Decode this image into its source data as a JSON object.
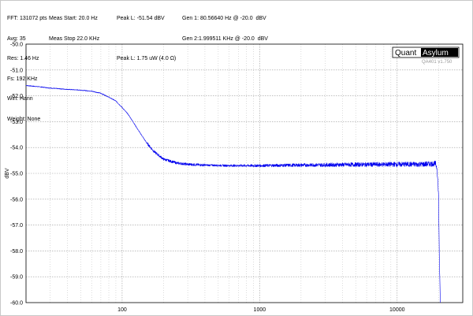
{
  "header": {
    "col1": [
      "FFT: 131072 pts",
      "Avg: 35",
      "Res: 1.46 Hz",
      "Fs: 192 KHz",
      "Win: Hann",
      "Weight: None"
    ],
    "col2": [
      "Meas Start: 20.0 Hz",
      "Meas Stop 22.0 KHz"
    ],
    "col3": [
      "Peak L: -51.54 dBV",
      "Peak L: 1.75 uW (4.0 Ω)"
    ],
    "col4": [
      "Gen 1: 80.56640 Hz @ -20.0  dBV",
      "Gen 2:1.999511 KHz @ -20.0  dBV"
    ]
  },
  "brand": {
    "part1": "Quant",
    "part2": "Asylum",
    "version": "QA401 v1.750"
  },
  "chart_data": {
    "type": "line",
    "title": "",
    "xlabel": "",
    "ylabel": "dBV",
    "xscale": "log",
    "xlim": [
      20,
      30000
    ],
    "ylim": [
      -60.0,
      -50.0
    ],
    "xticks": [
      100,
      1000,
      10000
    ],
    "xtick_labels": [
      "100",
      "1000",
      "10000"
    ],
    "yticks": [
      -50.0,
      -51.0,
      -52.0,
      -53.0,
      -54.0,
      -55.0,
      -56.0,
      -57.0,
      -58.0,
      -59.0,
      -60.0
    ],
    "ytick_labels": [
      "-50.0",
      "-51.0",
      "-52.0",
      "-53.0",
      "-54.0",
      "-55.0",
      "-56.0",
      "-57.0",
      "-58.0",
      "-59.0",
      "-60.0"
    ],
    "grid": true,
    "line_color": "#0000ee",
    "series": [
      {
        "x": [
          20,
          25,
          30,
          40,
          50,
          60,
          70,
          80,
          90,
          100,
          110,
          120,
          130,
          150,
          170,
          200,
          250,
          300,
          400,
          600,
          1000,
          2000,
          5000,
          10000,
          15000,
          18000,
          19000,
          19500,
          20000,
          20300,
          20600
        ],
        "y": [
          -51.6,
          -51.65,
          -51.7,
          -51.75,
          -51.78,
          -51.82,
          -51.9,
          -52.05,
          -52.2,
          -52.45,
          -52.7,
          -53.0,
          -53.3,
          -53.8,
          -54.15,
          -54.45,
          -54.6,
          -54.65,
          -54.68,
          -54.7,
          -54.7,
          -54.68,
          -54.66,
          -54.65,
          -54.65,
          -54.63,
          -54.62,
          -54.8,
          -55.8,
          -58.5,
          -60.0
        ]
      }
    ]
  }
}
